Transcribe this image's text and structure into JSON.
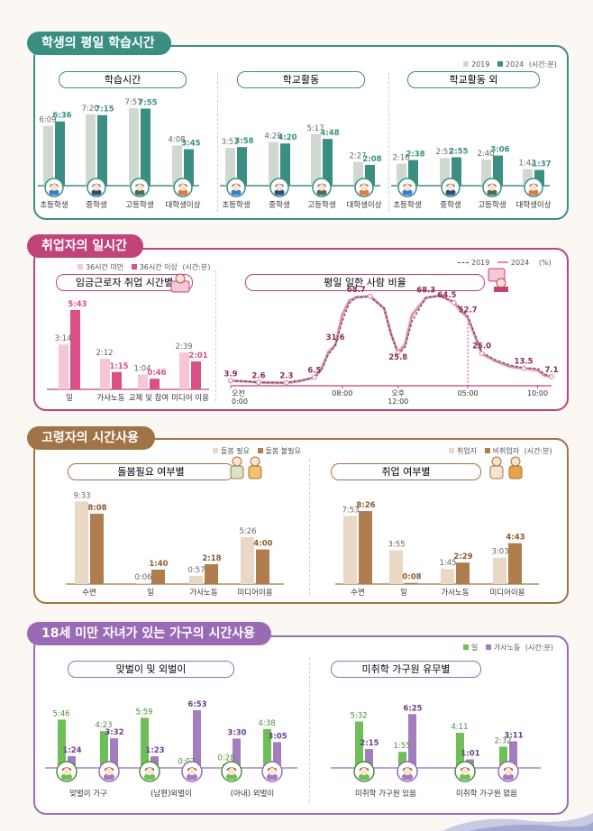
{
  "chart_data": [
    {
      "type": "bar",
      "section": "학생의 평일 학습시간",
      "legend": [
        "2019",
        "2024",
        "(시간:분)"
      ],
      "colors": {
        "2019": "#cfd9cf",
        "2024": "#3a8f82",
        "axis": "#3a8f82"
      },
      "groups": [
        {
          "title": "학습시간",
          "categories": [
            "초등학생",
            "중학생",
            "고등학생",
            "대학생이상"
          ],
          "series": [
            {
              "name": "2019",
              "values": [
                6.15,
                7.333,
                7.95,
                4.133
              ],
              "labels": [
                "6:09",
                "7:20",
                "7:57",
                "4:08"
              ]
            },
            {
              "name": "2024",
              "values": [
                6.6,
                7.25,
                7.917,
                3.75
              ],
              "labels": [
                "6:36",
                "7:15",
                "7:55",
                "3:45"
              ]
            }
          ]
        },
        {
          "title": "학교활동",
          "categories": [
            "초등학생",
            "중학생",
            "고등학생",
            "대학생이상"
          ],
          "series": [
            {
              "name": "2019",
              "values": [
                3.883,
                4.483,
                5.283,
                2.45
              ],
              "labels": [
                "3:53",
                "4:29",
                "5:17",
                "2:27"
              ]
            },
            {
              "name": "2024",
              "values": [
                3.967,
                4.333,
                4.8,
                2.133
              ],
              "labels": [
                "3:58",
                "4:20",
                "4:48",
                "2:08"
              ]
            }
          ]
        },
        {
          "title": "학교활동 외",
          "categories": [
            "초등학생",
            "중학생",
            "고등학생",
            "대학생이상"
          ],
          "series": [
            {
              "name": "2019",
              "values": [
                2.267,
                2.85,
                2.667,
                1.7
              ],
              "labels": [
                "2:16",
                "2:51",
                "2:40",
                "1:42"
              ]
            },
            {
              "name": "2024",
              "values": [
                2.633,
                2.917,
                3.1,
                1.617
              ],
              "labels": [
                "2:38",
                "2:55",
                "3:06",
                "1:37"
              ]
            }
          ]
        }
      ]
    },
    {
      "type": "bar",
      "section": "취업자의 일시간",
      "title": "임금근로자 취업 시간별",
      "legend": [
        "36시간 미만",
        "36시간 이상",
        "(시간:분)"
      ],
      "colors": {
        "36시간 미만": "#f6c6d6",
        "36시간 이상": "#d94f86"
      },
      "categories": [
        "일",
        "가사노동",
        "교제 및 참여",
        "미디어 이용"
      ],
      "series": [
        {
          "name": "36시간 미만",
          "values": [
            3.233,
            2.2,
            1.067,
            2.65
          ],
          "labels": [
            "3:14",
            "2:12",
            "1:04",
            "2:39"
          ]
        },
        {
          "name": "36시간 이상",
          "values": [
            5.717,
            1.25,
            0.767,
            2.017
          ],
          "labels": [
            "5:43",
            "1:15",
            "0:46",
            "2:01"
          ]
        }
      ]
    },
    {
      "type": "line",
      "section": "취업자의 일시간",
      "title": "평일 일한 사람 비율",
      "legend": [
        "2019",
        "2024",
        "(%)"
      ],
      "colors": {
        "2019": "#555555",
        "2024": "#e58cae",
        "labels": "#8a2a52"
      },
      "x_ticks": [
        {
          "h": 0,
          "top": "오전",
          "bottom": "0:00"
        },
        {
          "h": 8,
          "top": "08:00",
          "bottom": ""
        },
        {
          "h": 12,
          "top": "오후",
          "bottom": "12:00"
        },
        {
          "h": 17,
          "top": "05:00",
          "bottom": ""
        },
        {
          "h": 22,
          "top": "10:00",
          "bottom": ""
        }
      ],
      "x": [
        0,
        0.5,
        1,
        2,
        3,
        4,
        5,
        6,
        6.5,
        7,
        7.5,
        8,
        8.5,
        9,
        10,
        11,
        11.5,
        12,
        12.5,
        13,
        14,
        15,
        16,
        16.5,
        17,
        18,
        19,
        20,
        21,
        22,
        22.5,
        23
      ],
      "series": [
        {
          "name": "2019",
          "values": [
            3.9,
            3.7,
            3.5,
            2.6,
            2.5,
            2.4,
            4.0,
            6.5,
            12,
            24,
            31.6,
            50,
            64,
            68.7,
            69,
            60,
            40,
            24,
            30,
            50,
            68.3,
            69.5,
            65.5,
            60,
            54,
            26,
            20,
            16,
            14,
            13.5,
            9,
            6.5
          ]
        },
        {
          "name": "2024",
          "values": [
            3.9,
            3.6,
            3.4,
            2.6,
            2.4,
            2.3,
            3.8,
            6.5,
            13,
            26,
            31.6,
            55,
            66,
            68.7,
            69.5,
            60,
            40,
            25.8,
            32,
            55,
            68.3,
            70,
            64.5,
            58,
            52.7,
            25,
            19,
            15,
            13.5,
            12,
            8,
            7.1
          ]
        }
      ],
      "point_labels": [
        {
          "x": 0,
          "y": 3.9,
          "label": "3.9"
        },
        {
          "x": 2,
          "y": 2.6,
          "label": "2.6"
        },
        {
          "x": 4,
          "y": 2.3,
          "label": "2.3"
        },
        {
          "x": 6,
          "y": 6.5,
          "label": "6.5"
        },
        {
          "x": 7.5,
          "y": 31.6,
          "label": "31.6"
        },
        {
          "x": 9,
          "y": 68.7,
          "label": "68.7"
        },
        {
          "x": 12,
          "y": 25.8,
          "label": "25.8"
        },
        {
          "x": 14,
          "y": 68.3,
          "label": "68.3"
        },
        {
          "x": 15.5,
          "y": 64.5,
          "label": "64.5"
        },
        {
          "x": 17,
          "y": 52.7,
          "label": "52.7"
        },
        {
          "x": 18,
          "y": 25.0,
          "label": "25.0"
        },
        {
          "x": 21,
          "y": 13.5,
          "label": "13.5"
        },
        {
          "x": 23,
          "y": 7.1,
          "label": "7.1"
        }
      ],
      "ylim": [
        0,
        80
      ]
    },
    {
      "type": "bar",
      "section": "고령자의 시간사용",
      "title": "돌봄필요 여부별",
      "legend": [
        "돌봄 필요",
        "돌봄 불필요"
      ],
      "colors": {
        "돌봄 필요": "#ead8c6",
        "돌봄 불필요": "#b07d4f"
      },
      "categories": [
        "수면",
        "일",
        "가사노동",
        "미디어이용"
      ],
      "series": [
        {
          "name": "돌봄 필요",
          "values": [
            9.55,
            0.1,
            0.95,
            5.433
          ],
          "labels": [
            "9:33",
            "0:06",
            "0:57",
            "5:26"
          ]
        },
        {
          "name": "돌봄 불필요",
          "values": [
            8.133,
            1.667,
            2.3,
            4.0
          ],
          "labels": [
            "8:08",
            "1:40",
            "2:18",
            "4:00"
          ]
        }
      ]
    },
    {
      "type": "bar",
      "section": "고령자의 시간사용",
      "title": "취업 여부별",
      "legend": [
        "취업자",
        "비취업자",
        "(시간:분)"
      ],
      "colors": {
        "취업자": "#ead8c6",
        "비취업자": "#b07d4f"
      },
      "categories": [
        "수면",
        "일",
        "가사노동",
        "미디어이용"
      ],
      "series": [
        {
          "name": "취업자",
          "values": [
            7.883,
            3.917,
            1.75,
            3.05
          ],
          "labels": [
            "7:53",
            "3:55",
            "1:45",
            "3:03"
          ]
        },
        {
          "name": "비취업자",
          "values": [
            8.433,
            0.133,
            2.483,
            4.717
          ],
          "labels": [
            "8:26",
            "0:08",
            "2:29",
            "4:43"
          ]
        }
      ]
    },
    {
      "type": "bar",
      "section": "18세 미만 자녀가 있는 가구의 시간사용",
      "title": "맞벌이 및 외벌이",
      "legend": [
        "일",
        "가사노동",
        "(시간:분)"
      ],
      "colors": {
        "일": "#6fbf58",
        "가사노동": "#a47cc0"
      },
      "categories": [
        "맞벌이 가구",
        "(남편)외벌이",
        "(아내) 외벌이"
      ],
      "bars": [
        {
          "who": "m",
          "series": "일",
          "value": 5.767,
          "label": "5:46"
        },
        {
          "who": "m",
          "series": "가사노동",
          "value": 1.4,
          "label": "1:24"
        },
        {
          "who": "f",
          "series": "일",
          "value": 4.383,
          "label": "4:23"
        },
        {
          "who": "f",
          "series": "가사노동",
          "value": 3.533,
          "label": "3:32"
        },
        {
          "who": "m",
          "series": "일",
          "value": 5.983,
          "label": "5:59"
        },
        {
          "who": "m",
          "series": "가사노동",
          "value": 1.383,
          "label": "1:23"
        },
        {
          "who": "f",
          "series": "일",
          "value": 0.033,
          "label": "0:02"
        },
        {
          "who": "f",
          "series": "가사노동",
          "value": 6.883,
          "label": "6:53"
        },
        {
          "who": "m",
          "series": "일",
          "value": 0.467,
          "label": "0:28"
        },
        {
          "who": "m",
          "series": "가사노동",
          "value": 3.5,
          "label": "3:30"
        },
        {
          "who": "f",
          "series": "일",
          "value": 4.633,
          "label": "4:38"
        },
        {
          "who": "f",
          "series": "가사노동",
          "value": 3.083,
          "label": "3:05"
        }
      ]
    },
    {
      "type": "bar",
      "section": "18세 미만 자녀가 있는 가구의 시간사용",
      "title": "미취학 가구원 유무별",
      "legend": [
        "일",
        "가사노동",
        "(시간:분)"
      ],
      "colors": {
        "일": "#6fbf58",
        "가사노동": "#a47cc0"
      },
      "categories": [
        "미취학 가구원 있음",
        "미취학 가구원 없음"
      ],
      "bars": [
        {
          "who": "m",
          "series": "일",
          "value": 5.533,
          "label": "5:32"
        },
        {
          "who": "m",
          "series": "가사노동",
          "value": 2.25,
          "label": "2:15"
        },
        {
          "who": "f",
          "series": "일",
          "value": 1.917,
          "label": "1:55"
        },
        {
          "who": "f",
          "series": "가사노동",
          "value": 6.417,
          "label": "6:25"
        },
        {
          "who": "m",
          "series": "일",
          "value": 4.183,
          "label": "4:11"
        },
        {
          "who": "m",
          "series": "가사노동",
          "value": 1.017,
          "label": "1:01"
        },
        {
          "who": "f",
          "series": "일",
          "value": 2.533,
          "label": "2:32"
        },
        {
          "who": "f",
          "series": "가사노동",
          "value": 3.183,
          "label": "3:11"
        }
      ]
    }
  ],
  "sections": {
    "s1": {
      "title": "학생의 평일 학습시간",
      "color": "#3a8f82"
    },
    "s2": {
      "title": "취업자의 일시간",
      "color": "#c2427a"
    },
    "s3": {
      "title": "고령자의 시간사용",
      "color": "#a07446"
    },
    "s4": {
      "title": "18세 미만 자녀가 있는 가구의 시간사용",
      "color": "#9a6bb5"
    }
  }
}
